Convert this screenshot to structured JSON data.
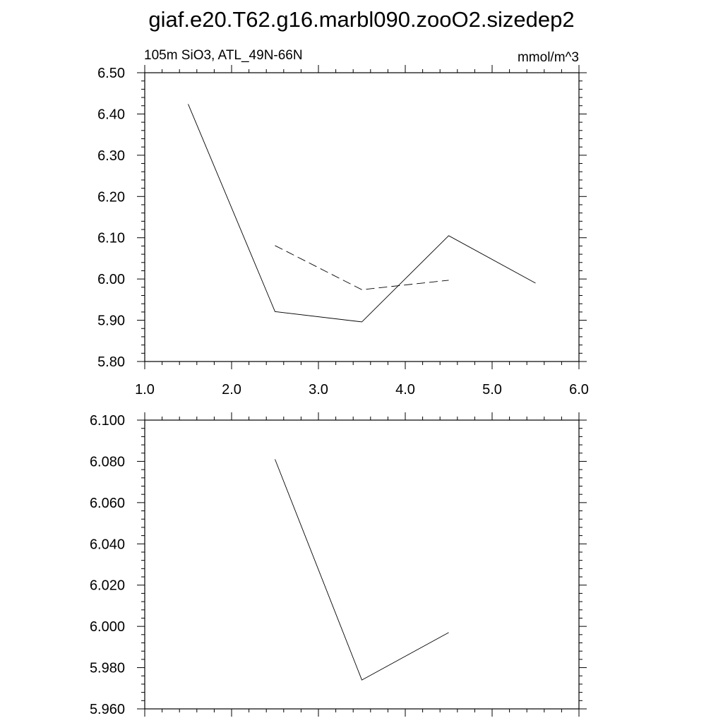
{
  "title": "giaf.e20.T62.g16.marbl090.zooO2.sizedep2",
  "chart_data": [
    {
      "type": "line",
      "left_label": "105m SiO3, ATL_49N-66N",
      "right_label": "mmol/m^3",
      "xlim": [
        1.0,
        6.0
      ],
      "ylim": [
        5.8,
        6.5
      ],
      "x_ticks": [
        "1.0",
        "2.0",
        "3.0",
        "4.0",
        "5.0",
        "6.0"
      ],
      "y_ticks": [
        "5.80",
        "5.90",
        "6.00",
        "6.10",
        "6.20",
        "6.30",
        "6.40",
        "6.50"
      ],
      "series": [
        {
          "style": "solid",
          "x": [
            1.5,
            2.5,
            3.5,
            4.5,
            5.5
          ],
          "y": [
            6.424,
            5.921,
            5.896,
            6.105,
            5.99
          ]
        },
        {
          "style": "dashed",
          "x": [
            2.5,
            3.5,
            4.5
          ],
          "y": [
            6.081,
            5.974,
            5.997
          ]
        }
      ]
    },
    {
      "type": "line",
      "xlim": [
        1.0,
        6.0
      ],
      "ylim": [
        5.96,
        6.1
      ],
      "y_ticks": [
        "5.960",
        "5.980",
        "6.000",
        "6.020",
        "6.040",
        "6.060",
        "6.080",
        "6.100"
      ],
      "series": [
        {
          "style": "solid",
          "x": [
            2.5,
            3.5,
            4.5
          ],
          "y": [
            6.081,
            5.974,
            5.997
          ]
        }
      ]
    }
  ]
}
